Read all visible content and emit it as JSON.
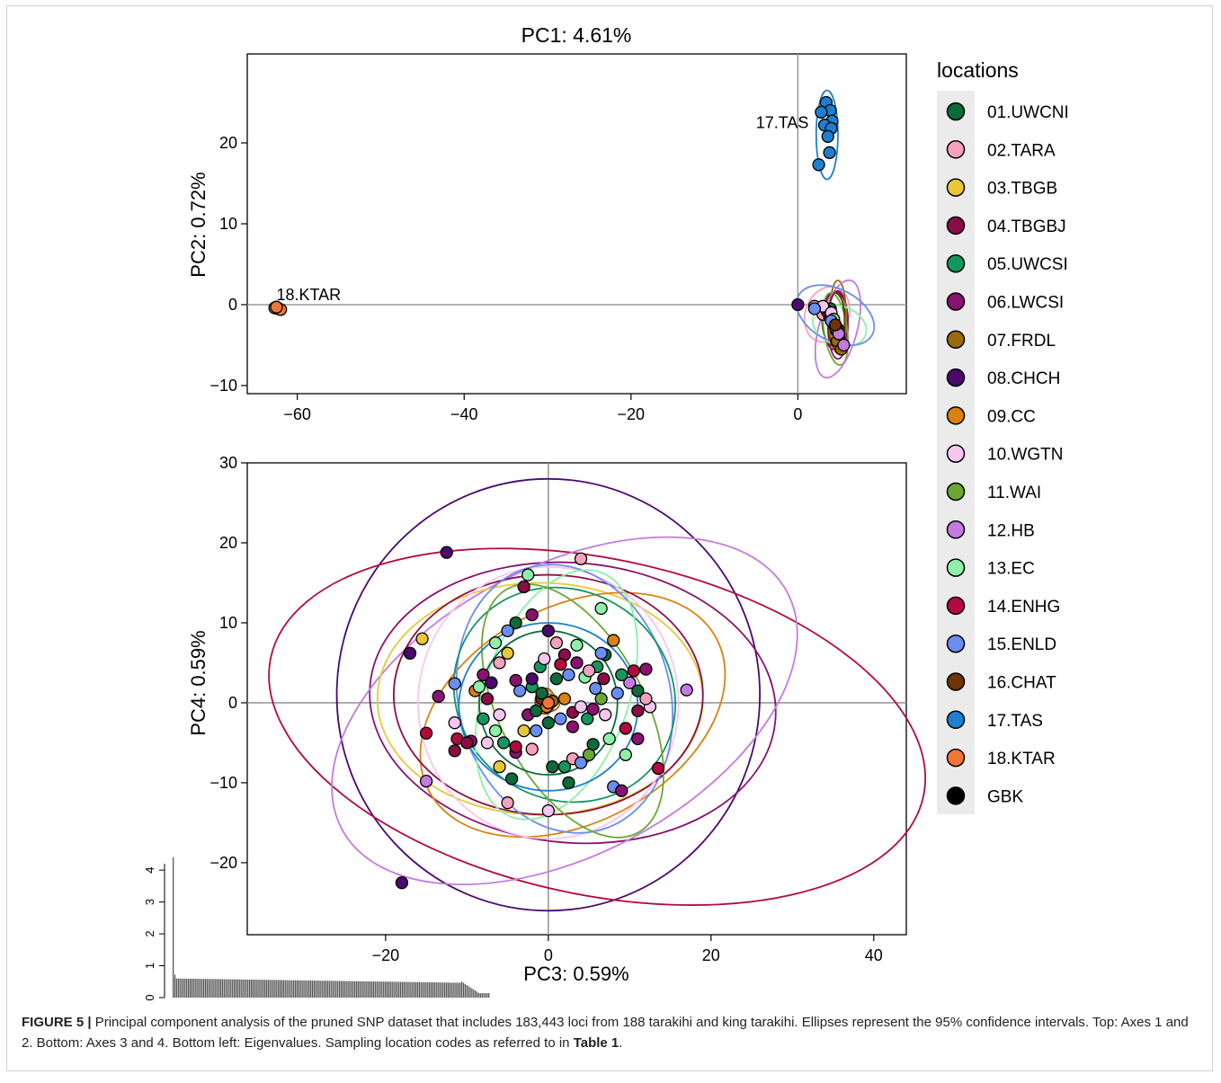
{
  "figure": {
    "caption": {
      "label": "FIGURE 5 |",
      "text_1": " Principal component analysis of the pruned SNP dataset that includes 183,443 loci from 188 tarakihi and king tarakihi. Ellipses represent the 95% confidence intervals. Top: Axes 1 and 2. Bottom: Axes 3 and 4. Bottom left: Eigenvalues. Sampling location codes as referred to in ",
      "table_ref": "Table 1",
      "text_2": "."
    }
  },
  "legend": {
    "title": "locations",
    "items": [
      {
        "label": "01.UWCNI",
        "color": "#0d6b3a"
      },
      {
        "label": "02.TARA",
        "color": "#f7a1bd"
      },
      {
        "label": "03.TBGB",
        "color": "#e8c83a"
      },
      {
        "label": "04.TBGBJ",
        "color": "#8c0d46"
      },
      {
        "label": "05.UWCSI",
        "color": "#139660"
      },
      {
        "label": "06.LWCSI",
        "color": "#8a1270"
      },
      {
        "label": "07.FRDL",
        "color": "#9a6a0b"
      },
      {
        "label": "08.CHCH",
        "color": "#4a0a6e"
      },
      {
        "label": "09.CC",
        "color": "#d9820f"
      },
      {
        "label": "10.WGTN",
        "color": "#f7c6ef"
      },
      {
        "label": "11.WAI",
        "color": "#6aa832"
      },
      {
        "label": "12.HB",
        "color": "#c47ae0"
      },
      {
        "label": "13.EC",
        "color": "#8df0a6"
      },
      {
        "label": "14.ENHG",
        "color": "#b3093f"
      },
      {
        "label": "15.ENLD",
        "color": "#6a8ef0"
      },
      {
        "label": "16.CHAT",
        "color": "#6e3306"
      },
      {
        "label": "17.TAS",
        "color": "#1e7fd0"
      },
      {
        "label": "18.KTAR",
        "color": "#f07636"
      },
      {
        "label": "GBK",
        "color": "#000000"
      }
    ]
  },
  "chart_data": [
    {
      "type": "scatter",
      "title": "PC1: 4.61%",
      "xlabel": "",
      "ylabel": "PC2: 0.72%",
      "xlim": [
        -66,
        13
      ],
      "ylim": [
        -11,
        31
      ],
      "xticks": [
        -60,
        -40,
        -20,
        0
      ],
      "xtick_labels": [
        "−60",
        "−40",
        "−20",
        "0"
      ],
      "yticks": [
        -10,
        0,
        10,
        20
      ],
      "ytick_labels": [
        "−10",
        "0",
        "10",
        "20"
      ],
      "grid": false,
      "reference_lines": {
        "x": 0,
        "y": 0
      },
      "annotations": [
        {
          "text": "17.TAS",
          "x": 1.3,
          "y": 22.5
        },
        {
          "text": "18.KTAR",
          "x": -62.5,
          "y": 1.2
        }
      ],
      "series": [
        {
          "name": "17.TAS",
          "points": [
            [
              3.4,
              25.0
            ],
            [
              3.9,
              24.0
            ],
            [
              2.8,
              23.8
            ],
            [
              4.1,
              22.7
            ],
            [
              3.2,
              22.2
            ],
            [
              4.0,
              21.8
            ],
            [
              3.6,
              20.8
            ],
            [
              3.8,
              18.8
            ],
            [
              2.5,
              17.3
            ]
          ],
          "ellipse": {
            "cx": 3.5,
            "cy": 21.0,
            "rx": 1.3,
            "ry": 5.5,
            "angle": 0
          }
        },
        {
          "name": "18.KTAR",
          "points": [
            [
              -62.7,
              -0.4
            ],
            [
              -62.3,
              -0.5
            ],
            [
              -62.0,
              -0.6
            ],
            [
              -62.5,
              -0.3
            ]
          ]
        },
        {
          "name": "01.UWCNI",
          "points": [
            [
              3.6,
              -1.0
            ],
            [
              4.2,
              -2.2
            ],
            [
              4.8,
              -3.0
            ],
            [
              3.9,
              -0.5
            ]
          ],
          "ellipse": {
            "cx": 4.3,
            "cy": -1.8,
            "rx": 1.4,
            "ry": 3.3,
            "angle": 0
          }
        },
        {
          "name": "02.TARA",
          "points": [
            [
              2.0,
              -0.2
            ],
            [
              3.0,
              -1.2
            ],
            [
              4.0,
              -2.0
            ]
          ],
          "ellipse": {
            "cx": 3.5,
            "cy": -1.2,
            "rx": 2.6,
            "ry": 3.5,
            "angle": -20
          }
        },
        {
          "name": "04.TBGBJ",
          "points": [
            [
              3.8,
              -1.5
            ],
            [
              4.6,
              -3.2
            ],
            [
              5.0,
              -4.5
            ]
          ],
          "ellipse": {
            "cx": 4.5,
            "cy": -2.0,
            "rx": 1.5,
            "ry": 3.6,
            "angle": 0
          }
        },
        {
          "name": "06.LWCSI",
          "points": [
            [
              4.2,
              -2.0
            ],
            [
              4.9,
              -3.8
            ]
          ],
          "ellipse": {
            "cx": 4.8,
            "cy": -2.5,
            "rx": 1.2,
            "ry": 4.2,
            "angle": 0
          }
        },
        {
          "name": "07.FRDL",
          "points": [
            [
              4.7,
              -4.5
            ],
            [
              5.2,
              -5.5
            ]
          ],
          "ellipse": {
            "cx": 4.8,
            "cy": -1.5,
            "rx": 1.0,
            "ry": 4.5,
            "angle": 0
          }
        },
        {
          "name": "08.CHCH",
          "points": [
            [
              0.0,
              0.0
            ],
            [
              3.5,
              -0.8
            ]
          ]
        },
        {
          "name": "10.WGTN",
          "points": [
            [
              3.0,
              -0.2
            ],
            [
              4.0,
              -1.0
            ],
            [
              4.5,
              -2.5
            ]
          ]
        },
        {
          "name": "11.WAI",
          "points": [
            [
              4.5,
              -2.8
            ]
          ],
          "ellipse": {
            "cx": 4.5,
            "cy": -3.0,
            "rx": 1.4,
            "ry": 4.5,
            "angle": 8
          }
        },
        {
          "name": "12.HB",
          "points": [
            [
              4.9,
              -3.6
            ],
            [
              5.5,
              -5.0
            ]
          ],
          "ellipse": {
            "cx": 4.8,
            "cy": -3.0,
            "rx": 2.3,
            "ry": 6.2,
            "angle": -15
          }
        },
        {
          "name": "13.EC",
          "points": [
            [
              4.3,
              -1.8
            ]
          ],
          "ellipse": {
            "cx": 5.0,
            "cy": -2.6,
            "rx": 3.3,
            "ry": 2.4,
            "angle": -20
          }
        },
        {
          "name": "15.ENLD",
          "points": [
            [
              2.0,
              -0.5
            ],
            [
              4.0,
              -2.0
            ]
          ],
          "ellipse": {
            "cx": 4.5,
            "cy": -1.3,
            "rx": 5.0,
            "ry": 3.2,
            "angle": -28
          }
        },
        {
          "name": "16.CHAT",
          "points": [
            [
              4.5,
              -2.5
            ]
          ],
          "ellipse": {
            "cx": 4.6,
            "cy": -2.0,
            "rx": 1.0,
            "ry": 3.5,
            "angle": 0
          }
        }
      ]
    },
    {
      "type": "scatter",
      "title": "",
      "xlabel": "PC3: 0.59%",
      "ylabel": "PC4: 0.59%",
      "xlim": [
        -37,
        44
      ],
      "ylim": [
        -29,
        30
      ],
      "xticks": [
        -20,
        0,
        20,
        40
      ],
      "xtick_labels": [
        "−20",
        "0",
        "20",
        "40"
      ],
      "yticks": [
        -20,
        -10,
        0,
        10,
        20,
        30
      ],
      "ytick_labels": [
        "−20",
        "−10",
        "0",
        "10",
        "20",
        "30"
      ],
      "grid": false,
      "reference_lines": {
        "x": 0,
        "y": 0
      },
      "ellipses": [
        {
          "name": "08.CHCH",
          "cx": 0,
          "cy": 1.0,
          "rx": 26,
          "ry": 27,
          "angle": 0
        },
        {
          "name": "14.ENHG",
          "cx": 6,
          "cy": -3.0,
          "rx": 41,
          "ry": 21,
          "angle": -12
        },
        {
          "name": "06.LWCSI",
          "cx": 3,
          "cy": 0.0,
          "rx": 25,
          "ry": 17.5,
          "angle": -5
        },
        {
          "name": "12.HB",
          "cx": 2,
          "cy": -1.0,
          "rx": 31,
          "ry": 18,
          "angle": 28
        },
        {
          "name": "03.TBGB",
          "cx": -1,
          "cy": 0.5,
          "rx": 20,
          "ry": 14.5,
          "angle": 0
        },
        {
          "name": "09.CC",
          "cx": 3,
          "cy": -1.5,
          "rx": 20,
          "ry": 13.5,
          "angle": 28
        },
        {
          "name": "04.TBGBJ",
          "cx": 0,
          "cy": 1.0,
          "rx": 19,
          "ry": 15,
          "angle": 0
        },
        {
          "name": "10.WGTN",
          "cx": 0,
          "cy": 0.0,
          "rx": 16,
          "ry": 17,
          "angle": 0
        },
        {
          "name": "15.ENLD",
          "cx": 2,
          "cy": 0.5,
          "rx": 13,
          "ry": 17,
          "angle": 15
        },
        {
          "name": "05.UWCSI",
          "cx": 2,
          "cy": 1.0,
          "rx": 14,
          "ry": 13,
          "angle": -35
        },
        {
          "name": "13.EC",
          "cx": 1,
          "cy": 1.0,
          "rx": 16,
          "ry": 9,
          "angle": 70
        },
        {
          "name": "11.WAI",
          "cx": 3,
          "cy": -1.0,
          "rx": 17,
          "ry": 9,
          "angle": -62
        },
        {
          "name": "17.TAS",
          "cx": 0,
          "cy": -0.5,
          "rx": 11,
          "ry": 10.5,
          "angle": 0
        },
        {
          "name": "01.UWCNI",
          "cx": 0,
          "cy": 0.0,
          "rx": 8.5,
          "ry": 9,
          "angle": 0
        },
        {
          "name": "07.FRDL",
          "cx": 0,
          "cy": 0.0,
          "rx": 1.4,
          "ry": 1.1,
          "angle": 0
        },
        {
          "name": "16.CHAT",
          "cx": -0.4,
          "cy": 0.2,
          "rx": 1.2,
          "ry": 1.6,
          "angle": 0
        },
        {
          "name": "18.KTAR",
          "cx": -0.2,
          "cy": 0.3,
          "rx": 0.9,
          "ry": 1.3,
          "angle": 0
        }
      ],
      "points": [
        [
          "08.CHCH",
          -12.5,
          18.8
        ],
        [
          "02.TARA",
          4.0,
          18.0
        ],
        [
          "08.CHCH",
          -17.0,
          6.2
        ],
        [
          "03.TBGB",
          -15.5,
          8.0
        ],
        [
          "08.CHCH",
          -18.0,
          -22.5
        ],
        [
          "13.EC",
          -2.5,
          16.0
        ],
        [
          "04.TBGBJ",
          -3.0,
          14.5
        ],
        [
          "13.EC",
          6.5,
          11.8
        ],
        [
          "12.HB",
          17.0,
          1.6
        ],
        [
          "14.ENHG",
          13.5,
          -8.2
        ],
        [
          "12.HB",
          -15.0,
          -9.8
        ],
        [
          "06.LWCSI",
          -13.5,
          0.8
        ],
        [
          "14.ENHG",
          -15.0,
          -3.8
        ],
        [
          "15.ENLD",
          -11.5,
          2.4
        ],
        [
          "10.WGTN",
          -11.5,
          -2.5
        ],
        [
          "14.ENHG",
          -11.2,
          -4.5
        ],
        [
          "04.TBGBJ",
          -11.5,
          -6.0
        ],
        [
          "06.LWCSI",
          -9.5,
          -4.8
        ],
        [
          "09.CC",
          -9.0,
          1.5
        ],
        [
          "06.LWCSI",
          -8.0,
          3.5
        ],
        [
          "13.EC",
          -6.5,
          7.5
        ],
        [
          "02.TARA",
          -6.0,
          5.0
        ],
        [
          "03.TBGB",
          -5.0,
          6.2
        ],
        [
          "01.UWCNI",
          -4.0,
          10.0
        ],
        [
          "15.ENLD",
          -5.0,
          9.0
        ],
        [
          "06.LWCSI",
          -2.0,
          11.0
        ],
        [
          "08.CHCH",
          0.0,
          9.0
        ],
        [
          "02.TARA",
          1.0,
          7.5
        ],
        [
          "04.TBGBJ",
          2.0,
          6.0
        ],
        [
          "13.EC",
          3.5,
          7.2
        ],
        [
          "09.CC",
          8.0,
          7.8
        ],
        [
          "01.UWCNI",
          7.0,
          6.0
        ],
        [
          "05.UWCSI",
          6.0,
          4.5
        ],
        [
          "15.ENLD",
          6.5,
          6.2
        ],
        [
          "04.TBGBJ",
          6.8,
          3.0
        ],
        [
          "06.LWCSI",
          12.0,
          4.2
        ],
        [
          "14.ENHG",
          10.5,
          4.0
        ],
        [
          "12.HB",
          10.0,
          2.5
        ],
        [
          "15.ENLD",
          8.5,
          1.2
        ],
        [
          "05.UWCSI",
          9.0,
          3.5
        ],
        [
          "01.UWCNI",
          11.0,
          1.5
        ],
        [
          "10.WGTN",
          12.5,
          -0.5
        ],
        [
          "04.TBGBJ",
          11.0,
          -1.0
        ],
        [
          "06.LWCSI",
          11.0,
          -4.5
        ],
        [
          "14.ENHG",
          9.5,
          -3.2
        ],
        [
          "13.EC",
          7.5,
          -4.5
        ],
        [
          "01.UWCNI",
          5.5,
          -5.2
        ],
        [
          "11.WAI",
          5.0,
          -6.5
        ],
        [
          "02.TARA",
          3.0,
          -7.0
        ],
        [
          "15.ENLD",
          4.0,
          -7.5
        ],
        [
          "05.UWCSI",
          2.0,
          -8.0
        ],
        [
          "01.UWCNI",
          0.5,
          -8.0
        ],
        [
          "10.WGTN",
          0.0,
          -13.5
        ],
        [
          "15.ENLD",
          8.0,
          -10.5
        ],
        [
          "06.LWCSI",
          9.0,
          -11.0
        ],
        [
          "01.UWCNI",
          2.5,
          -10.0
        ],
        [
          "02.TARA",
          -5.0,
          -12.5
        ],
        [
          "06.LWCSI",
          -4.0,
          -6.2
        ],
        [
          "14.ENHG",
          -4.0,
          -5.5
        ],
        [
          "02.TARA",
          -2.0,
          -5.8
        ],
        [
          "01.UWCNI",
          -4.5,
          -9.5
        ],
        [
          "03.TBGB",
          -6.0,
          -8.0
        ],
        [
          "05.UWCSI",
          -5.5,
          -5.0
        ],
        [
          "10.WGTN",
          -7.5,
          -5.0
        ],
        [
          "13.EC",
          -6.5,
          -3.5
        ],
        [
          "03.TBGB",
          -3.0,
          -3.5
        ],
        [
          "06.LWCSI",
          -2.5,
          -1.5
        ],
        [
          "01.UWCNI",
          -1.5,
          -1.0
        ],
        [
          "05.UWCSI",
          -2.0,
          2.0
        ],
        [
          "15.ENLD",
          -3.5,
          1.5
        ],
        [
          "06.LWCSI",
          -4.0,
          2.8
        ],
        [
          "08.CHCH",
          -7.0,
          2.5
        ],
        [
          "13.EC",
          -8.5,
          2.0
        ],
        [
          "04.TBGBJ",
          -7.5,
          0.5
        ],
        [
          "10.WGTN",
          -6.0,
          -1.5
        ],
        [
          "01.UWCNI",
          0.0,
          -2.5
        ],
        [
          "15.ENLD",
          1.5,
          -2.0
        ],
        [
          "04.TBGBJ",
          3.0,
          -1.2
        ],
        [
          "10.WGTN",
          4.0,
          -0.5
        ],
        [
          "05.UWCSI",
          4.8,
          -2.0
        ],
        [
          "06.LWCSI",
          5.5,
          -0.8
        ],
        [
          "09.CC",
          2.0,
          0.5
        ],
        [
          "01.UWCNI",
          1.0,
          3.0
        ],
        [
          "15.ENLD",
          2.5,
          3.5
        ],
        [
          "06.LWCSI",
          3.5,
          5.0
        ],
        [
          "13.EC",
          4.5,
          3.2
        ],
        [
          "02.TARA",
          5.0,
          4.0
        ],
        [
          "05.UWCSI",
          -1.0,
          4.5
        ],
        [
          "10.WGTN",
          -0.5,
          5.5
        ],
        [
          "14.ENHG",
          1.5,
          4.8
        ],
        [
          "08.CHCH",
          -2.0,
          3.0
        ],
        [
          "16.CHAT",
          -0.8,
          0.5
        ],
        [
          "07.FRDL",
          0.5,
          0.2
        ],
        [
          "09.CC",
          -0.2,
          -0.5
        ],
        [
          "18.KTAR",
          0.0,
          0.0
        ],
        [
          "01.UWCNI",
          -0.8,
          1.2
        ],
        [
          "15.ENLD",
          -1.5,
          -3.5
        ],
        [
          "10.WGTN",
          7.0,
          -1.5
        ],
        [
          "04.TBGBJ",
          -10.0,
          -5.0
        ],
        [
          "11.WAI",
          6.5,
          0.5
        ],
        [
          "02.TARA",
          12.0,
          0.5
        ],
        [
          "13.EC",
          9.5,
          -6.5
        ],
        [
          "05.UWCSI",
          -8.0,
          -2.0
        ],
        [
          "06.LWCSI",
          3.0,
          -3.0
        ],
        [
          "15.ENLD",
          5.8,
          1.8
        ]
      ]
    },
    {
      "type": "bar",
      "title": "",
      "xlabel": "",
      "ylabel": "",
      "ylim": [
        0,
        4.2
      ],
      "yticks": [
        0,
        1,
        2,
        3,
        4
      ],
      "ytick_labels": [
        "0",
        "1",
        "2",
        "3",
        "4"
      ],
      "values": [
        4.4,
        0.72,
        0.6,
        0.6
      ]
    }
  ]
}
